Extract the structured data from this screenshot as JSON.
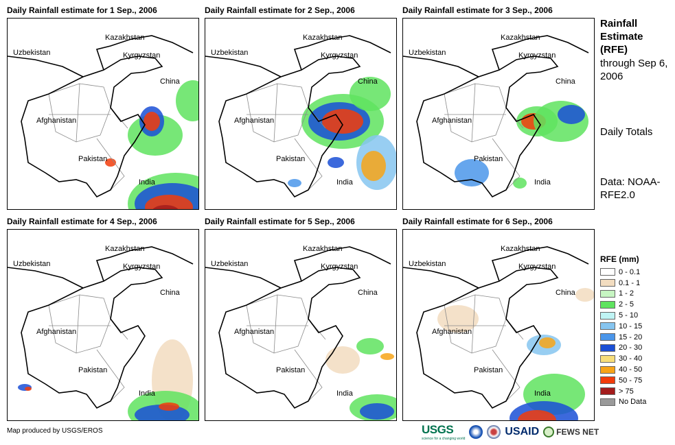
{
  "panels": [
    {
      "title": "Daily Rainfall estimate for 1 Sep., 2006"
    },
    {
      "title": "Daily Rainfall estimate for 2 Sep., 2006"
    },
    {
      "title": "Daily Rainfall estimate for 3 Sep., 2006"
    },
    {
      "title": "Daily Rainfall estimate for 4 Sep., 2006"
    },
    {
      "title": "Daily Rainfall estimate for 5 Sep., 2006"
    },
    {
      "title": "Daily Rainfall estimate for 6 Sep., 2006"
    }
  ],
  "country_labels": {
    "kazakhstan": "Kazakhstan",
    "uzbekistan": "Uzbekistan",
    "kyrgyzstan": "Kyrgyzstan",
    "china": "China",
    "afghanistan": "Afghanistan",
    "pakistan": "Pakistan",
    "india": "India"
  },
  "side": {
    "title": "Rainfall Estimate (RFE)",
    "through": "through Sep 6, 2006",
    "daily": "Daily Totals",
    "data": "Data: NOAA-RFE2.0"
  },
  "legend": {
    "title": "RFE (mm)",
    "items": [
      {
        "label": "0 - 0.1",
        "color": "#ffffff"
      },
      {
        "label": "0.1 - 1",
        "color": "#f2dcc0"
      },
      {
        "label": "1 - 2",
        "color": "#c7f5c2"
      },
      {
        "label": "2 - 5",
        "color": "#5fe35f"
      },
      {
        "label": "5 - 10",
        "color": "#bff4f4"
      },
      {
        "label": "10 - 15",
        "color": "#86c5f0"
      },
      {
        "label": "15 - 20",
        "color": "#4b96ea"
      },
      {
        "label": "20 - 30",
        "color": "#1a4fd6"
      },
      {
        "label": "30 - 40",
        "color": "#f7de7a"
      },
      {
        "label": "40 - 50",
        "color": "#f7a418"
      },
      {
        "label": "50 - 75",
        "color": "#f23c0a"
      },
      {
        "label": "> 75",
        "color": "#a31c1c"
      },
      {
        "label": "No Data",
        "color": "#9a9a9a"
      }
    ]
  },
  "footer": {
    "credit": "Map produced by USGS/EROS",
    "logos": {
      "usgs": "USGS",
      "usgs_tagline": "science for a changing world",
      "usaid": "USAID",
      "fews": "FEWS NET"
    }
  }
}
